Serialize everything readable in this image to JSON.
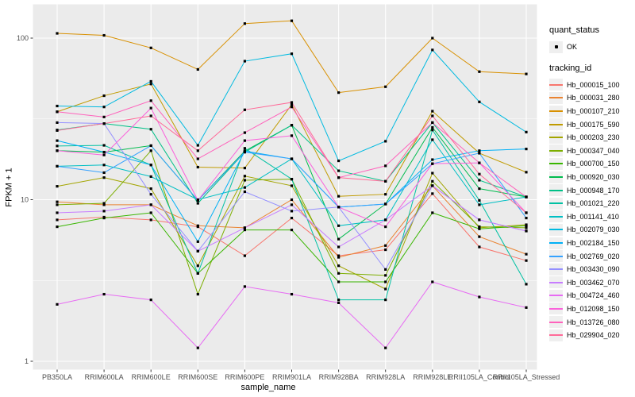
{
  "chart_data": {
    "type": "line",
    "title": "",
    "xlabel": "sample_name",
    "ylabel": "FPKM + 1",
    "y_scale": "log10",
    "y_ticks": [
      1,
      10,
      100
    ],
    "y_minor_gridlines": [
      3.1623,
      31.623
    ],
    "ylim": [
      1,
      140
    ],
    "grid": true,
    "legend_position": "right",
    "panel_background": "#EBEBEB",
    "gridline_color": "#FFFFFF",
    "point_color": "#000000",
    "point_shape": "filled-square",
    "quant_status": {
      "title": "quant_status",
      "items": [
        {
          "label": "OK"
        }
      ]
    },
    "series_legend_title": "tracking_id",
    "x_categories": [
      "PB350LA",
      "RRIM600LA",
      "RRIM600LE",
      "RRIM600SE",
      "RRIM600PE",
      "RRIM901LA",
      "RRIM928BA",
      "RRIM928LA",
      "RRIM928LE",
      "RRII105LA_Control",
      "RRII105LA_Stressed"
    ],
    "series": [
      {
        "name": "Hb_000015_100",
        "color": "#F8766D",
        "values": [
          7.5,
          7.8,
          7.5,
          6.8,
          4.5,
          7.7,
          4.5,
          4.9,
          10.9,
          5.1,
          4.2
        ]
      },
      {
        "name": "Hb_000031_280",
        "color": "#EA8331",
        "values": [
          9.7,
          9.3,
          9.3,
          6.9,
          6.7,
          10.0,
          4.4,
          5.2,
          12.2,
          5.9,
          4.6
        ]
      },
      {
        "name": "Hb_000107_210",
        "color": "#D89000",
        "values": [
          107,
          104,
          87,
          64,
          123,
          128,
          46,
          50,
          100,
          62,
          60
        ]
      },
      {
        "name": "Hb_000175_590",
        "color": "#C09B00",
        "values": [
          35,
          44,
          52,
          15.9,
          15.7,
          38.8,
          10.5,
          10.8,
          35.3,
          19.4,
          14.8
        ]
      },
      {
        "name": "Hb_000203_230",
        "color": "#A3A500",
        "values": [
          12.1,
          13.7,
          11.7,
          3.9,
          14.0,
          12.2,
          3.9,
          2.8,
          14.6,
          6.7,
          7.0
        ]
      },
      {
        "name": "Hb_000347_040",
        "color": "#7CAE00",
        "values": [
          9.3,
          9.5,
          20.1,
          2.6,
          13.2,
          13.4,
          3.5,
          3.4,
          13.0,
          6.8,
          6.7
        ]
      },
      {
        "name": "Hb_000700_150",
        "color": "#39B600",
        "values": [
          6.8,
          7.7,
          8.3,
          3.5,
          6.5,
          6.5,
          3.1,
          3.1,
          8.3,
          6.6,
          6.9
        ]
      },
      {
        "name": "Hb_000920_030",
        "color": "#00BB4E",
        "values": [
          20.1,
          19.7,
          21.6,
          9.9,
          20.0,
          28.9,
          5.7,
          9.4,
          28.0,
          11.7,
          10.4
        ]
      },
      {
        "name": "Hb_000948_170",
        "color": "#00C087",
        "values": [
          27.0,
          29.6,
          27.3,
          9.5,
          19.7,
          28.9,
          15.1,
          13.0,
          30.0,
          13.2,
          10.4
        ]
      },
      {
        "name": "Hb_001021_220",
        "color": "#00C1A3",
        "values": [
          21.5,
          21.7,
          16.4,
          3.5,
          20.8,
          13.4,
          2.4,
          2.4,
          27.0,
          9.9,
          3.0
        ]
      },
      {
        "name": "Hb_001141_410",
        "color": "#00BFC4",
        "values": [
          16.1,
          16.4,
          13.9,
          10.0,
          11.9,
          17.9,
          6.9,
          7.5,
          23.5,
          9.3,
          10.4
        ]
      },
      {
        "name": "Hb_002079_030",
        "color": "#00BAE0",
        "values": [
          38,
          37.5,
          54,
          21.7,
          72,
          80,
          17.4,
          23,
          84.5,
          40.3,
          26.2
        ]
      },
      {
        "name": "Hb_002184_150",
        "color": "#00B0F6",
        "values": [
          23.2,
          19.7,
          16.4,
          5.5,
          20.0,
          17.9,
          9.0,
          9.4,
          17.7,
          20.1,
          20.6
        ]
      },
      {
        "name": "Hb_002769_020",
        "color": "#35A2FF",
        "values": [
          16.1,
          14.7,
          21.6,
          9.9,
          19.7,
          17.9,
          9.0,
          9.4,
          16.7,
          19.4,
          7.7
        ]
      },
      {
        "name": "Hb_003430_090",
        "color": "#9590FF",
        "values": [
          30.0,
          29.6,
          10.8,
          4.8,
          11.2,
          8.5,
          9.0,
          3.7,
          12.2,
          7.5,
          6.4
        ]
      },
      {
        "name": "Hb_003462_070",
        "color": "#C77CFF",
        "values": [
          8.3,
          8.5,
          9.3,
          4.8,
          6.7,
          9.3,
          5.1,
          7.5,
          12.2,
          7.5,
          6.4
        ]
      },
      {
        "name": "Hb_004724_460",
        "color": "#E76BF3",
        "values": [
          2.25,
          2.6,
          2.4,
          1.21,
          2.9,
          2.6,
          2.3,
          1.21,
          3.1,
          2.5,
          2.15
        ]
      },
      {
        "name": "Hb_012098_150",
        "color": "#FA62DB",
        "values": [
          20.1,
          18.9,
          36.9,
          9.9,
          23.2,
          24.9,
          9.0,
          6.8,
          16.7,
          16.9,
          8.3
        ]
      },
      {
        "name": "Hb_013726_080",
        "color": "#FF62BC",
        "values": [
          35.0,
          32.5,
          41.0,
          17.9,
          26.0,
          37.5,
          13.7,
          16.2,
          30.0,
          16.9,
          10.4
        ]
      },
      {
        "name": "Hb_029904_020",
        "color": "#FF6A98",
        "values": [
          26.8,
          29.6,
          33.0,
          20.1,
          36.0,
          40.0,
          13.7,
          13.0,
          33.0,
          14.4,
          8.3
        ]
      }
    ]
  }
}
